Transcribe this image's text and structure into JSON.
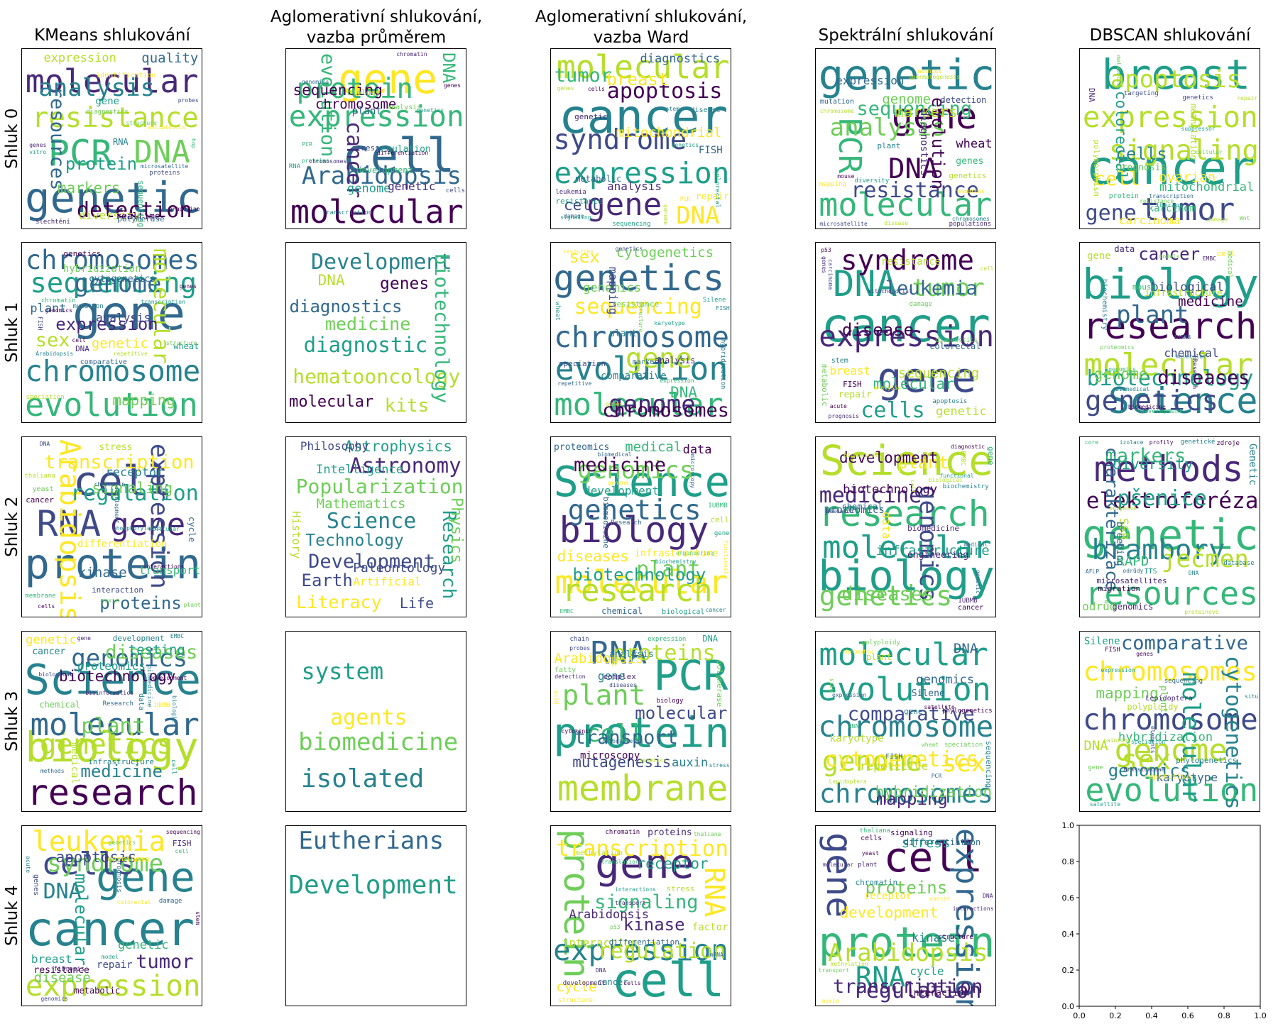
{
  "columns": [
    {
      "title": "KMeans shlukování"
    },
    {
      "title": "Aglomerativní shlukování,\nvazba průměrem"
    },
    {
      "title": "Aglomerativní shlukování,\nvazba Ward"
    },
    {
      "title": "Spektrální shlukování"
    },
    {
      "title": "DBSCAN shlukování"
    }
  ],
  "rows": [
    {
      "label": "Shluk 0"
    },
    {
      "label": "Shluk 1"
    },
    {
      "label": "Shluk 2"
    },
    {
      "label": "Shluk 3"
    },
    {
      "label": "Shluk 4"
    }
  ],
  "palette": [
    "#440154",
    "#482878",
    "#3e4a89",
    "#31688e",
    "#26828e",
    "#1f9e89",
    "#35b779",
    "#6ece58",
    "#b5de2b",
    "#fde725"
  ],
  "empty_axes": {
    "x_ticks": [
      "0.0",
      "0.2",
      "0.4",
      "0.6",
      "0.8",
      "1.0"
    ],
    "y_ticks": [
      "0.0",
      "0.2",
      "0.4",
      "0.6",
      "0.8",
      "1.0"
    ]
  },
  "clouds": [
    [
      [
        "genetic",
        "molecular",
        "PCR",
        "DNA",
        "resistance",
        "analysis",
        "detection",
        "resources",
        "protein",
        "markers",
        "quality",
        "expression",
        "diversity",
        "gene",
        "realtime",
        "RNA",
        "polymerase",
        "sequencing",
        "identification",
        "proteins",
        "šlechtění",
        "diagnostics",
        "structure",
        "hop",
        "antibiotics",
        "microsatellite",
        "probes",
        "grapevine",
        "vitro",
        "genes"
      ],
      [
        "cell",
        "gene",
        "molecular",
        "expression",
        "protein",
        "Arabidopsis",
        "cancer",
        "evolution",
        "DNA",
        "sequencing",
        "chromosome",
        "genome",
        "genetic",
        "plant",
        "regulation",
        "development",
        "biology",
        "stress",
        "analysis",
        "cells",
        "RNA",
        "transcription",
        "chromatin",
        "genetics",
        "proteins",
        "genomics",
        "chromosomes",
        "differentiation",
        "PCR",
        "genes"
      ],
      [
        "cancer",
        "molecular",
        "expression",
        "gene",
        "syndrome",
        "DNA",
        "apoptosis",
        "tumor",
        "breast",
        "cell",
        "mitochondrial",
        "diagnostics",
        "analysis",
        "FISH",
        "repair",
        "metabolic",
        "genetic",
        "resistance",
        "disease",
        "sequencing",
        "leukemia",
        "colorectal",
        "PCR",
        "damage",
        "signaling",
        "genome",
        "cells",
        "genetics",
        "stem",
        "genes"
      ],
      [
        "genetic",
        "molecular",
        "gene",
        "PCR",
        "DNA",
        "analysis",
        "resistance",
        "sequencing",
        "evolution",
        "markers",
        "genome",
        "wheat",
        "expression",
        "diagnostics",
        "genes",
        "detection",
        "plant",
        "genetics",
        "mutation",
        "diversity",
        "mapping",
        "populations",
        "chromosome",
        "disease",
        "resources",
        "methods",
        "microsatellite",
        "mouse",
        "chromosomes",
        "spermatogenesis"
      ],
      [
        "cancer",
        "breast",
        "expression",
        "tumor",
        "signaling",
        "apoptosis",
        "gene",
        "cell",
        "cells",
        "colorectal",
        "ovarian",
        "mitochondrial",
        "carcinoma",
        "karcinom",
        "prognosis",
        "methylation",
        "polymorphism",
        "DNA",
        "protein",
        "genetics",
        "therapy",
        "targeting",
        "damage",
        "suppressor",
        "metabolism",
        "repair",
        "cellular",
        "transcription",
        "Wnt",
        "resistance"
      ]
    ],
    [
      [
        "gene",
        "evolution",
        "chromosome",
        "chromosomes",
        "sequencing",
        "genome",
        "molecular",
        "sex",
        "expression",
        "mapping",
        "genetic",
        "plant",
        "analysis",
        "hybridization",
        "cytogenetics",
        "wheat",
        "DNA",
        "genetics",
        "comparative",
        "speciation",
        "mutation",
        "chromatin",
        "FISH",
        "genomics",
        "genes",
        "transcription",
        "Arabidopsis",
        "structure",
        "cell",
        "repetitive"
      ],
      [
        "Development",
        "diagnostic",
        "hematooncology",
        "biotechnology",
        "kits",
        "medicine",
        "diagnostics",
        "genes",
        "molecular",
        "DNA"
      ],
      [
        "evolution",
        "chromosome",
        "genetics",
        "molecular",
        "gene",
        "genome",
        "sequencing",
        "chromosomes",
        "sex",
        "DNA",
        "cytogenetics",
        "genomics",
        "mapping",
        "comparative",
        "plant",
        "analysis",
        "resistance",
        "speciation",
        "markers",
        "wheat",
        "Silene",
        "hybridization",
        "genetics",
        "karyotype",
        "repetitive",
        "expression",
        "resources",
        "structure",
        "FISH",
        "genes"
      ],
      [
        "cancer",
        "gene",
        "DNA",
        "expression",
        "syndrome",
        "tumor",
        "cells",
        "leukemia",
        "disease",
        "molecular",
        "sequencing",
        "genetic",
        "breast",
        "resistance",
        "repair",
        "colorectal",
        "metabolic",
        "FISH",
        "stem",
        "apoptosis",
        "damage",
        "diagnostics",
        "acute",
        "cell",
        "carcinoma",
        "prognosis",
        "p53",
        "mitochondrial",
        "analysis",
        "genes"
      ],
      [
        "biology",
        "research",
        "Science",
        "molecular",
        "genetics",
        "plant",
        "biotechnology",
        "diseases",
        "cancer",
        "genome",
        "medicine",
        "biological",
        "chemical",
        "gene",
        "infrastructure",
        "data",
        "cell",
        "mouse",
        "biochemistry",
        "Research",
        "medical",
        "development",
        "proteomics",
        "models",
        "biomedicine",
        "EMBC",
        "IUBMB",
        "biomedical",
        "genomics",
        "molecular"
      ]
    ],
    [
      [
        "protein",
        "cell",
        "RNA",
        "gene",
        "Arabidopsis",
        "expression",
        "regulation",
        "transcription",
        "proteins",
        "signaling",
        "kinase",
        "receptor",
        "transport",
        "differentiation",
        "stress",
        "cycle",
        "cancer",
        "interaction",
        "yeast",
        "thaliana",
        "membrane",
        "auxin",
        "phosphorylation",
        "cells",
        "molecular",
        "chromatin",
        "development",
        "plant",
        "DNA",
        "interactions"
      ],
      [
        "Science",
        "Astronomy",
        "Popularization",
        "Development",
        "Research",
        "Literacy",
        "Earth",
        "Technology",
        "Physics",
        "Astrophysics",
        "Life",
        "Mathematics",
        "Paleontology",
        "Intelligence",
        "Philosophy",
        "History",
        "Artificial"
      ],
      [
        "Science",
        "molecular",
        "biology",
        "research",
        "genetics",
        "genomics",
        "plant",
        "medicine",
        "biotechnology",
        "diseases",
        "medical",
        "data",
        "development",
        "infrastructure",
        "proteomics",
        "chemical",
        "biomedicine",
        "cell",
        "biological",
        "Research",
        "gene",
        "IUBMB",
        "EMBC",
        "cancer",
        "microscopy",
        "biomedical",
        "engineering",
        "biochemistry",
        "functional",
        "genome"
      ],
      [
        "biology",
        "Science",
        "research",
        "molecular",
        "genetics",
        "genomics",
        "medicine",
        "diseases",
        "plant",
        "development",
        "infrastructure",
        "biotechnology",
        "data",
        "proteomics",
        "engineering",
        "chemical",
        "biomedicine",
        "gene",
        "cancer",
        "biochemistry",
        "EMBC",
        "IUBMB",
        "functional",
        "medical",
        "biological",
        "cell",
        "diagnostic",
        "Research",
        "genetic",
        "biomedical"
      ],
      [
        "genetic",
        "resources",
        "methods",
        "elektroforéza",
        "brambory",
        "ječmen",
        "pšenice",
        "markers",
        "charakterizace",
        "diversity",
        "RAPD",
        "SSR",
        "odrůd",
        "Genetic",
        "breeding",
        "genomics",
        "microsatellites",
        "migration",
        "ITS",
        "zdroje",
        "database",
        "genetické",
        "AFLP",
        "core",
        "profily",
        "odrůdy",
        "enzymové",
        "izolace",
        "proteinové",
        "DNA"
      ]
    ],
    [
      [
        "Science",
        "biology",
        "research",
        "molecular",
        "genetics",
        "genomics",
        "plant",
        "diseases",
        "medicine",
        "biotechnology",
        "testing",
        "genetic",
        "proteomics",
        "medical",
        "cancer",
        "chemical",
        "development",
        "infrastructure",
        "data",
        "biomedicine",
        "Research",
        "cell",
        "bioinformatics",
        "methods",
        "biological",
        "biologie",
        "gene",
        "Development",
        "IUBMB",
        "EMBC"
      ],
      [
        "isolated",
        "biomedicine",
        "system",
        "agents"
      ],
      [
        "protein",
        "PCR",
        "membrane",
        "RNA",
        "plant",
        "cell",
        "proteins",
        "transport",
        "molecular",
        "mutagenesis",
        "Arabidopsis",
        "auxin",
        "gene",
        "microscopy",
        "analysis",
        "DNA",
        "polymerase",
        "complex",
        "fatty",
        "biology",
        "expression",
        "chain",
        "detection",
        "cytokinin",
        "genetics",
        "stress",
        "cytoskeleton",
        "probes",
        "acid",
        "diseases"
      ],
      [
        "evolution",
        "chromosome",
        "chromosomes",
        "molecular",
        "genome",
        "sex",
        "cytogenetics",
        "comparative",
        "mapping",
        "hybridization",
        "DNA",
        "genomics",
        "repetitive",
        "karyotype",
        "Silene",
        "plant",
        "gene",
        "sequencing",
        "FISH",
        "polyploidy",
        "phylogenetics",
        "speciation",
        "satellite",
        "Lepidoptera",
        "wheat",
        "chromatin",
        "situ",
        "expression",
        "RNA",
        "PCR"
      ],
      [
        "evolution",
        "chromosome",
        "chromosomes",
        "genome",
        "sex",
        "molecular",
        "cytogenetics",
        "comparative",
        "genomics",
        "mapping",
        "DNA",
        "hybridization",
        "karyotype",
        "Silene",
        "plant",
        "polyploidy",
        "phylogenetics",
        "repetitive",
        "Lepidoptera",
        "gene",
        "FISH",
        "sequencing",
        "elements",
        "satellite",
        "speciation",
        "expression",
        "painting",
        "situ",
        "Brassicaceae",
        "genes"
      ]
    ],
    [
      [
        "cancer",
        "gene",
        "expression",
        "cells",
        "leukemia",
        "syndrome",
        "DNA",
        "tumor",
        "molecular",
        "apoptosis",
        "disease",
        "genetic",
        "breast",
        "repair",
        "resistance",
        "metabolic",
        "FISH",
        "carcinoma",
        "genes",
        "prognosis",
        "fibrosis",
        "damage",
        "colorectal",
        "stem",
        "acute",
        "sequencing",
        "genomics",
        "model",
        "genetics",
        "cell"
      ],
      [
        "Development",
        "Eutherians"
      ],
      [
        "cell",
        "gene",
        "protein",
        "expression",
        "RNA",
        "transcription",
        "regulation",
        "signaling",
        "kinase",
        "receptor",
        "cycle",
        "Arabidopsis",
        "interaction",
        "factor",
        "proteins",
        "cancer",
        "stress",
        "differentiation",
        "methylation",
        "chromatin",
        "development",
        "structure",
        "interactions",
        "translation",
        "transport",
        "p53",
        "DNA",
        "thaliana",
        "mRNA",
        "cells"
      ],
      [
        "protein",
        "cell",
        "gene",
        "expression",
        "RNA",
        "Arabidopsis",
        "regulation",
        "transcription",
        "proteins",
        "development",
        "stress",
        "kinase",
        "cycle",
        "receptor",
        "interaction",
        "differentiation",
        "signaling",
        "chromatin",
        "cells",
        "plant",
        "structure",
        "thaliana",
        "methylation",
        "yeast",
        "transport",
        "auxin",
        "cancer",
        "interactions",
        "DNA",
        "molecular"
      ],
      null
    ]
  ]
}
